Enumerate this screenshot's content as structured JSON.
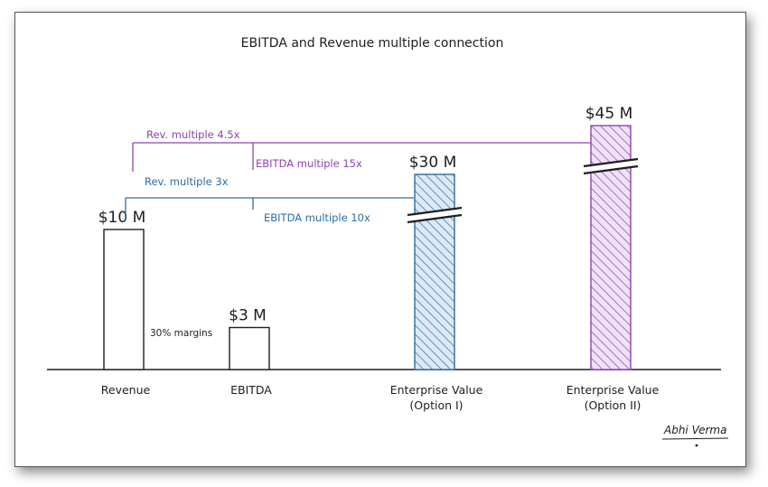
{
  "chart_data": {
    "type": "bar",
    "title": "EBITDA and Revenue multiple connection",
    "categories": [
      "Revenue",
      "EBITDA",
      "Enterprise Value (Option I)",
      "Enterprise Value (Option II)"
    ],
    "category_lines": [
      [
        "Revenue"
      ],
      [
        "EBITDA"
      ],
      [
        "Enterprise Value",
        "(Option I)"
      ],
      [
        "Enterprise Value",
        "(Option II)"
      ]
    ],
    "values": [
      10,
      3,
      30,
      45
    ],
    "value_labels": [
      "$10 M",
      "$3 M",
      "$30 M",
      "$45 M"
    ],
    "value_unit": "$ M",
    "axis_break": [
      false,
      false,
      true,
      true
    ],
    "annotations": {
      "margins": "30% margins",
      "rev_multiple_4_5": "Rev. multiple 4.5x",
      "ebitda_multiple_15": "EBITDA multiple 15x",
      "rev_multiple_3": "Rev. multiple 3x",
      "ebitda_multiple_10": "EBITDA multiple 10x"
    },
    "signature": "Abhi Verma",
    "colors": {
      "purple": "#8e44ad",
      "blue": "#2e6da4",
      "bar_blue_fill": "#a9c6e8",
      "bar_purple_fill": "#c9a3e6",
      "ink": "#1e1e1e"
    }
  }
}
